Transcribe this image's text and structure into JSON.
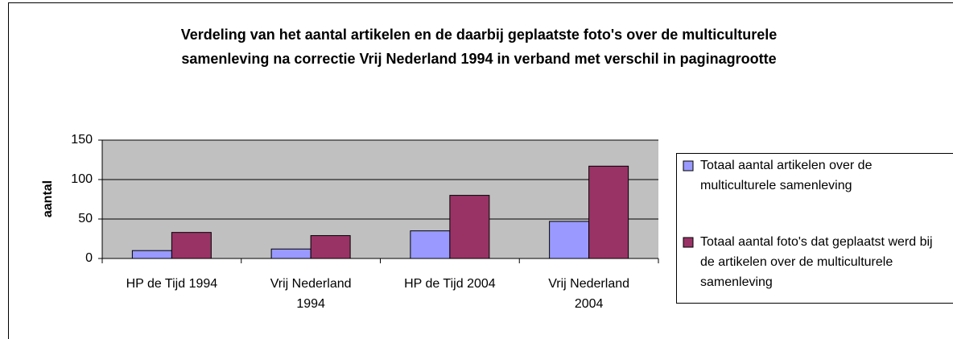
{
  "chart_data": {
    "type": "bar",
    "title": "Verdeling van het aantal artikelen en de daarbij geplaatste foto's over de multiculturele samenleving na correctie Vrij Nederland 1994 in verband met verschil in paginagrootte",
    "y_label": "aantal",
    "categories": [
      "HP de Tijd 1994",
      "Vrij Nederland 1994",
      "HP de Tijd 2004",
      "Vrij Nederland 2004"
    ],
    "series": [
      {
        "name": "Totaal aantal artikelen over de multiculturele samenleving",
        "color": "#9999ff",
        "values": [
          10,
          12,
          35,
          47
        ]
      },
      {
        "name": "Totaal aantal foto's dat geplaatst werd bij de artikelen over de multiculturele samenleving",
        "color": "#993366",
        "values": [
          33,
          29,
          80,
          117
        ]
      }
    ],
    "ylim": [
      0,
      150
    ],
    "yticks": [
      0,
      50,
      100,
      150
    ],
    "grid": true,
    "legend": "right"
  }
}
